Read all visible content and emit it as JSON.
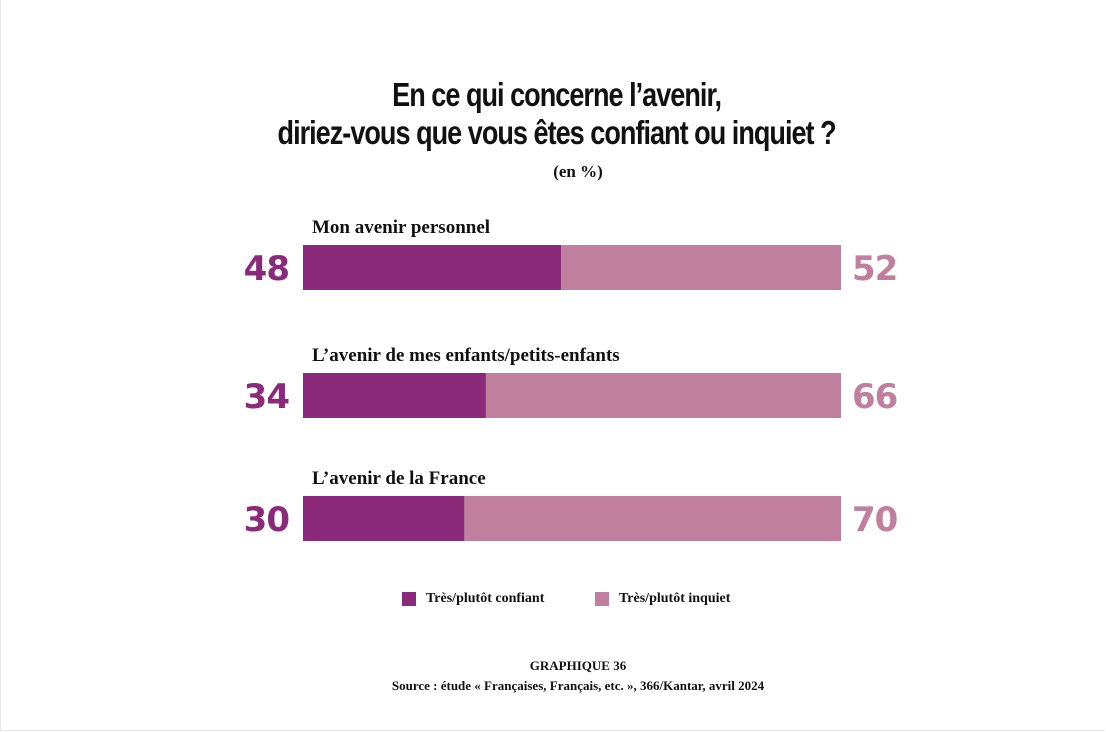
{
  "title_line1": "En ce qui concerne l’avenir,",
  "title_line2": "diriez-vous que vous êtes confiant ou inquiet ?",
  "subtitle": "(en %)",
  "colors": {
    "confiant": "#8b2a7b",
    "inquiet": "#c07f9d"
  },
  "legend": {
    "confiant": "Très/plutôt confiant",
    "inquiet": "Très/plutôt inquiet"
  },
  "footer": {
    "graphique": "GRAPHIQUE 36",
    "source": "Source : étude « Françaises, Français, etc. », 366/Kantar, avril 2024"
  },
  "chart_data": {
    "type": "bar",
    "orientation": "horizontal",
    "stacked": true,
    "unit": "%",
    "categories": [
      "Mon avenir personnel",
      "L’avenir de mes enfants/petits-enfants",
      "L’avenir de la France"
    ],
    "series": [
      {
        "name": "Très/plutôt confiant",
        "values": [
          48,
          34,
          30
        ]
      },
      {
        "name": "Très/plutôt inquiet",
        "values": [
          52,
          66,
          70
        ]
      }
    ],
    "xlim": [
      0,
      100
    ],
    "grid": false,
    "legend_position": "bottom"
  }
}
